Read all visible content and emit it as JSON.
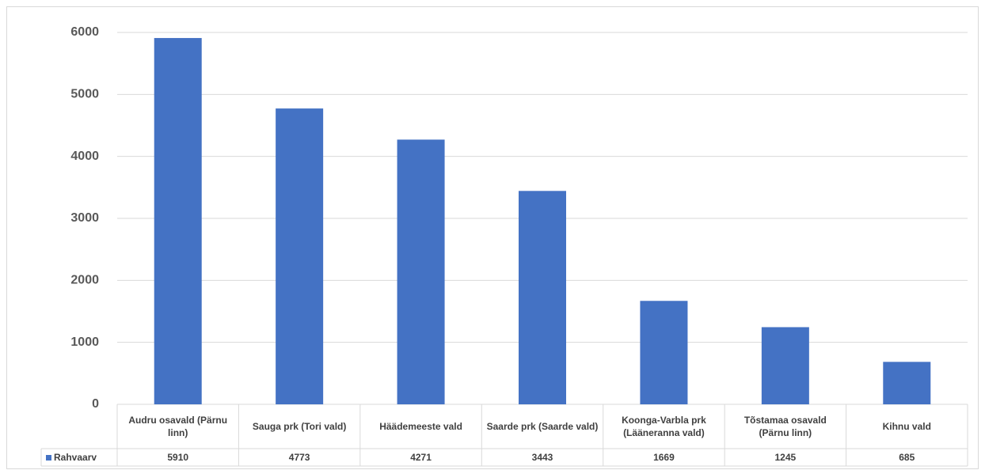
{
  "chart_data": {
    "type": "bar",
    "categories": [
      "Audru osavald (Pärnu linn)",
      "Sauga prk (Tori vald)",
      "Häädemeeste vald",
      "Saarde prk (Saarde vald)",
      "Koonga-Varbla prk (Lääneranna vald)",
      "Tõstamaa osavald (Pärnu linn)",
      "Kihnu vald"
    ],
    "series": [
      {
        "name": "Rahvaarv",
        "color": "#4472c4",
        "values": [
          5910,
          4773,
          4271,
          3443,
          1669,
          1245,
          685
        ]
      }
    ],
    "ylim": [
      0,
      6000
    ],
    "yticks": [
      0,
      1000,
      2000,
      3000,
      4000,
      5000,
      6000
    ],
    "grid": true,
    "data_table": true
  }
}
